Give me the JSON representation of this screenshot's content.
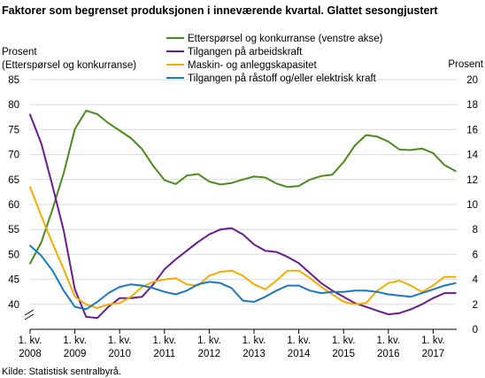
{
  "chart_data": {
    "type": "line",
    "title": "Faktorer som begrenset produksjonen i inneværende kvartal. Glattet sesongjustert",
    "left_axis_title": [
      "Prosent",
      "(Etterspørsel og konkurranse)"
    ],
    "right_axis_title": "Prosent",
    "source": "Kilde: Statistisk sentralbyrå.",
    "left_ylim": [
      35,
      85
    ],
    "left_ticks": [
      "40",
      "45",
      "50",
      "55",
      "60",
      "65",
      "70",
      "75",
      "80",
      "85"
    ],
    "right_ylim": [
      0,
      20
    ],
    "right_ticks": [
      "0",
      "2",
      "4",
      "6",
      "8",
      "10",
      "12",
      "14",
      "16",
      "18",
      "20"
    ],
    "x_tick_labels": [
      [
        "1. kv.",
        "2008"
      ],
      [
        "1. kv.",
        "2009"
      ],
      [
        "1. kv.",
        "2010"
      ],
      [
        "1. kv.",
        "2011"
      ],
      [
        "1. kv.",
        "2012"
      ],
      [
        "1. kv.",
        "2013"
      ],
      [
        "1. kv.",
        "2014"
      ],
      [
        "1. kv.",
        "2015"
      ],
      [
        "1. kv.",
        "2016"
      ],
      [
        "1. kv.",
        "2017"
      ]
    ],
    "grid": true,
    "legend_placement": "top-center",
    "series": [
      {
        "name": "Etterspørsel og konkurranse (venstre akse)",
        "axis": "left",
        "color": "#4a8c1c",
        "values": [
          48.2,
          52.4,
          59.0,
          66.3,
          75.1,
          78.8,
          78.1,
          76.3,
          74.8,
          73.3,
          71.1,
          67.7,
          64.9,
          64.1,
          65.8,
          66.1,
          64.6,
          64.0,
          64.3,
          65.0,
          65.6,
          65.4,
          64.2,
          63.5,
          63.7,
          65.0,
          65.7,
          66.0,
          68.5,
          71.8,
          73.9,
          73.6,
          72.6,
          71.0,
          70.9,
          71.2,
          70.3,
          67.9,
          66.7
        ]
      },
      {
        "name": "Tilgangen på arbeidskraft",
        "axis": "right",
        "color": "#6a1b8f",
        "values": [
          17.2,
          14.9,
          11.5,
          7.9,
          3.2,
          1.0,
          0.9,
          1.8,
          2.5,
          2.5,
          2.6,
          3.6,
          4.8,
          5.6,
          6.3,
          7.0,
          7.6,
          8.0,
          8.1,
          7.6,
          6.8,
          6.3,
          6.2,
          5.8,
          5.3,
          4.5,
          3.7,
          3.1,
          2.6,
          2.1,
          1.8,
          1.5,
          1.2,
          1.3,
          1.6,
          2.0,
          2.5,
          2.9,
          2.9
        ]
      },
      {
        "name": "Maskin- og anleggskapasitet",
        "axis": "right",
        "color": "#f2ad00",
        "values": [
          11.4,
          9.1,
          6.9,
          4.8,
          2.6,
          2.0,
          1.7,
          2.0,
          2.1,
          2.6,
          3.4,
          3.8,
          4.0,
          4.1,
          3.6,
          3.5,
          4.3,
          4.6,
          4.7,
          4.3,
          3.6,
          3.2,
          3.9,
          4.7,
          4.7,
          4.1,
          3.4,
          2.8,
          2.2,
          2.0,
          2.1,
          3.1,
          3.7,
          3.9,
          3.5,
          3.0,
          3.5,
          4.2,
          4.2
        ]
      },
      {
        "name": "Tilgangen på råstoff og/eller elektrisk kraft",
        "axis": "right",
        "color": "#1a78c2",
        "values": [
          6.7,
          5.9,
          4.7,
          3.1,
          1.8,
          1.6,
          2.2,
          2.9,
          3.4,
          3.6,
          3.5,
          3.3,
          3.0,
          2.8,
          3.1,
          3.6,
          3.8,
          3.7,
          3.3,
          2.3,
          2.2,
          2.6,
          3.1,
          3.5,
          3.5,
          3.1,
          2.9,
          3.0,
          3.0,
          3.1,
          3.1,
          3.0,
          2.8,
          2.7,
          2.6,
          2.9,
          3.2,
          3.5,
          3.7
        ]
      }
    ]
  }
}
